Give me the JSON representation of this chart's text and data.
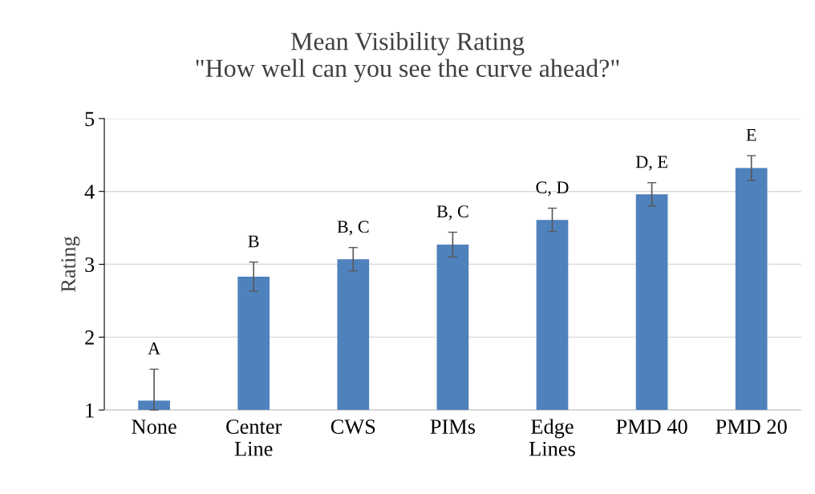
{
  "chart_data": {
    "type": "bar",
    "title": "Mean Visibility Rating\n\"How well can you see the curve ahead?\"",
    "ylabel": "Rating",
    "categories": [
      "None",
      "Center\nLine",
      "CWS",
      "PIMs",
      "Edge\nLines",
      "PMD 40",
      "PMD 20"
    ],
    "values": [
      1.13,
      2.83,
      3.07,
      3.27,
      3.61,
      3.96,
      4.32
    ],
    "errors": [
      [
        1.0,
        1.56
      ],
      0.2,
      0.16,
      0.17,
      0.16,
      0.16,
      0.17
    ],
    "value_labels": [
      "A",
      "B",
      "B, C",
      "B, C",
      "C, D",
      "D, E",
      "E"
    ],
    "color": "#4f81bd",
    "ylim": [
      1,
      5
    ],
    "yticks": [
      1,
      2,
      3,
      4,
      5
    ],
    "grid": "y"
  }
}
